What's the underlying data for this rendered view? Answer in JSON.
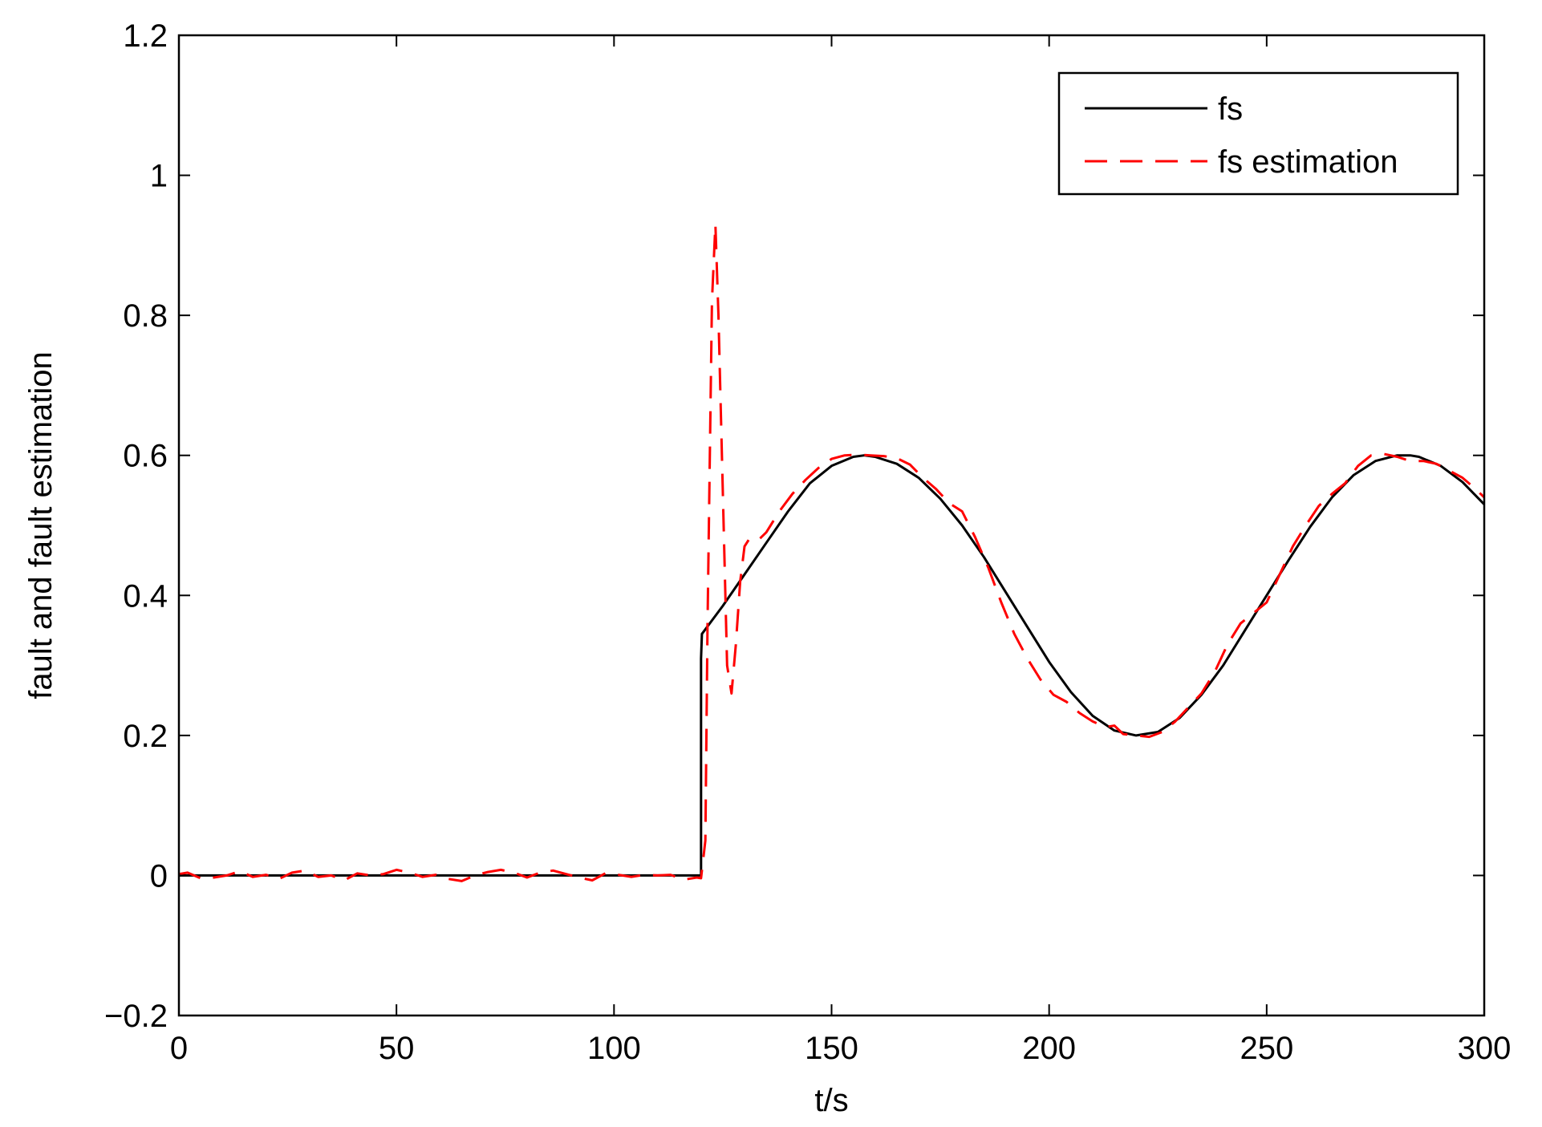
{
  "chart_data": {
    "type": "line",
    "title": "",
    "xlabel": "t/s",
    "ylabel": "fault and fault estimation",
    "xlim": [
      0,
      300
    ],
    "ylim": [
      -0.2,
      1.2
    ],
    "xticks": [
      0,
      50,
      100,
      150,
      200,
      250,
      300
    ],
    "yticks": [
      -0.2,
      0,
      0.2,
      0.4,
      0.6,
      0.8,
      1,
      1.2
    ],
    "ytick_labels": [
      "−0.2",
      "0",
      "0.2",
      "0.4",
      "0.6",
      "0.8",
      "1",
      "1.2"
    ],
    "grid": false,
    "legend_position": "top-right",
    "series": [
      {
        "name": "fs",
        "color": "#000000",
        "style": "solid",
        "points": [
          [
            0,
            0
          ],
          [
            120,
            0
          ],
          [
            120,
            0.31
          ],
          [
            120.2,
            0.345
          ],
          [
            125,
            0.385
          ],
          [
            130,
            0.43
          ],
          [
            135,
            0.475
          ],
          [
            140,
            0.52
          ],
          [
            145,
            0.56
          ],
          [
            150,
            0.585
          ],
          [
            155,
            0.598
          ],
          [
            157.5,
            0.6
          ],
          [
            160,
            0.598
          ],
          [
            165,
            0.588
          ],
          [
            170,
            0.568
          ],
          [
            175,
            0.538
          ],
          [
            180,
            0.5
          ],
          [
            185,
            0.455
          ],
          [
            190,
            0.405
          ],
          [
            195,
            0.355
          ],
          [
            200,
            0.305
          ],
          [
            205,
            0.262
          ],
          [
            210,
            0.228
          ],
          [
            215,
            0.207
          ],
          [
            220,
            0.2
          ],
          [
            225,
            0.205
          ],
          [
            230,
            0.225
          ],
          [
            235,
            0.258
          ],
          [
            240,
            0.3
          ],
          [
            245,
            0.35
          ],
          [
            250,
            0.4
          ],
          [
            255,
            0.45
          ],
          [
            260,
            0.498
          ],
          [
            265,
            0.54
          ],
          [
            270,
            0.572
          ],
          [
            275,
            0.592
          ],
          [
            280,
            0.6
          ],
          [
            283,
            0.6
          ],
          [
            285,
            0.598
          ],
          [
            290,
            0.585
          ],
          [
            295,
            0.562
          ],
          [
            300,
            0.53
          ]
        ]
      },
      {
        "name": "fs estimation",
        "color": "#ff0000",
        "style": "dashed",
        "points": [
          [
            0,
            0.002
          ],
          [
            2,
            0.004
          ],
          [
            5,
            -0.004
          ],
          [
            8,
            -0.003
          ],
          [
            11,
            0
          ],
          [
            14,
            0.006
          ],
          [
            17,
            -0.002
          ],
          [
            20,
            0.001
          ],
          [
            23,
            -0.005
          ],
          [
            26,
            0.004
          ],
          [
            29,
            0.007
          ],
          [
            32,
            -0.002
          ],
          [
            35,
            0
          ],
          [
            38,
            -0.007
          ],
          [
            41,
            0.003
          ],
          [
            44,
            0
          ],
          [
            47,
            0.002
          ],
          [
            50,
            0.008
          ],
          [
            53,
            0.004
          ],
          [
            56,
            -0.002
          ],
          [
            59,
            0.001
          ],
          [
            62,
            -0.005
          ],
          [
            65,
            -0.008
          ],
          [
            68,
            0
          ],
          [
            71,
            0.005
          ],
          [
            74,
            0.008
          ],
          [
            77,
            0.004
          ],
          [
            80,
            -0.003
          ],
          [
            83,
            0.004
          ],
          [
            86,
            0.007
          ],
          [
            89,
            0.002
          ],
          [
            92,
            -0.003
          ],
          [
            95,
            -0.007
          ],
          [
            98,
            0.003
          ],
          [
            101,
            0.001
          ],
          [
            104,
            -0.002
          ],
          [
            107,
            0.001
          ],
          [
            110,
            0
          ],
          [
            113,
            0.001
          ],
          [
            116,
            -0.006
          ],
          [
            119,
            -0.003
          ],
          [
            120,
            -0.004
          ],
          [
            121,
            0.05
          ],
          [
            121.5,
            0.36
          ],
          [
            122.5,
            0.82
          ],
          [
            123.3,
            0.93
          ],
          [
            124,
            0.8
          ],
          [
            125,
            0.55
          ],
          [
            126,
            0.3
          ],
          [
            127,
            0.26
          ],
          [
            128,
            0.33
          ],
          [
            129,
            0.42
          ],
          [
            130,
            0.47
          ],
          [
            131,
            0.48
          ],
          [
            133,
            0.478
          ],
          [
            135,
            0.49
          ],
          [
            138,
            0.52
          ],
          [
            141,
            0.545
          ],
          [
            144,
            0.565
          ],
          [
            147,
            0.582
          ],
          [
            150,
            0.595
          ],
          [
            153,
            0.6
          ],
          [
            156,
            0.601
          ],
          [
            159,
            0.6
          ],
          [
            162,
            0.599
          ],
          [
            165,
            0.596
          ],
          [
            168,
            0.587
          ],
          [
            171,
            0.568
          ],
          [
            174,
            0.552
          ],
          [
            177,
            0.532
          ],
          [
            180,
            0.52
          ],
          [
            183,
            0.483
          ],
          [
            186,
            0.44
          ],
          [
            189,
            0.39
          ],
          [
            192,
            0.345
          ],
          [
            195,
            0.31
          ],
          [
            198,
            0.28
          ],
          [
            201,
            0.258
          ],
          [
            204,
            0.248
          ],
          [
            207,
            0.232
          ],
          [
            210,
            0.22
          ],
          [
            213,
            0.212
          ],
          [
            215,
            0.214
          ],
          [
            217,
            0.202
          ],
          [
            220,
            0.2
          ],
          [
            223,
            0.198
          ],
          [
            226,
            0.205
          ],
          [
            229,
            0.22
          ],
          [
            232,
            0.24
          ],
          [
            235,
            0.26
          ],
          [
            238,
            0.29
          ],
          [
            241,
            0.33
          ],
          [
            244,
            0.36
          ],
          [
            247,
            0.375
          ],
          [
            250,
            0.39
          ],
          [
            253,
            0.43
          ],
          [
            256,
            0.47
          ],
          [
            259,
            0.5
          ],
          [
            262,
            0.528
          ],
          [
            265,
            0.545
          ],
          [
            268,
            0.56
          ],
          [
            271,
            0.585
          ],
          [
            274,
            0.6
          ],
          [
            277,
            0.602
          ],
          [
            280,
            0.598
          ],
          [
            283,
            0.592
          ],
          [
            286,
            0.592
          ],
          [
            289,
            0.588
          ],
          [
            292,
            0.578
          ],
          [
            295,
            0.568
          ],
          [
            298,
            0.552
          ],
          [
            300,
            0.54
          ]
        ]
      }
    ]
  }
}
